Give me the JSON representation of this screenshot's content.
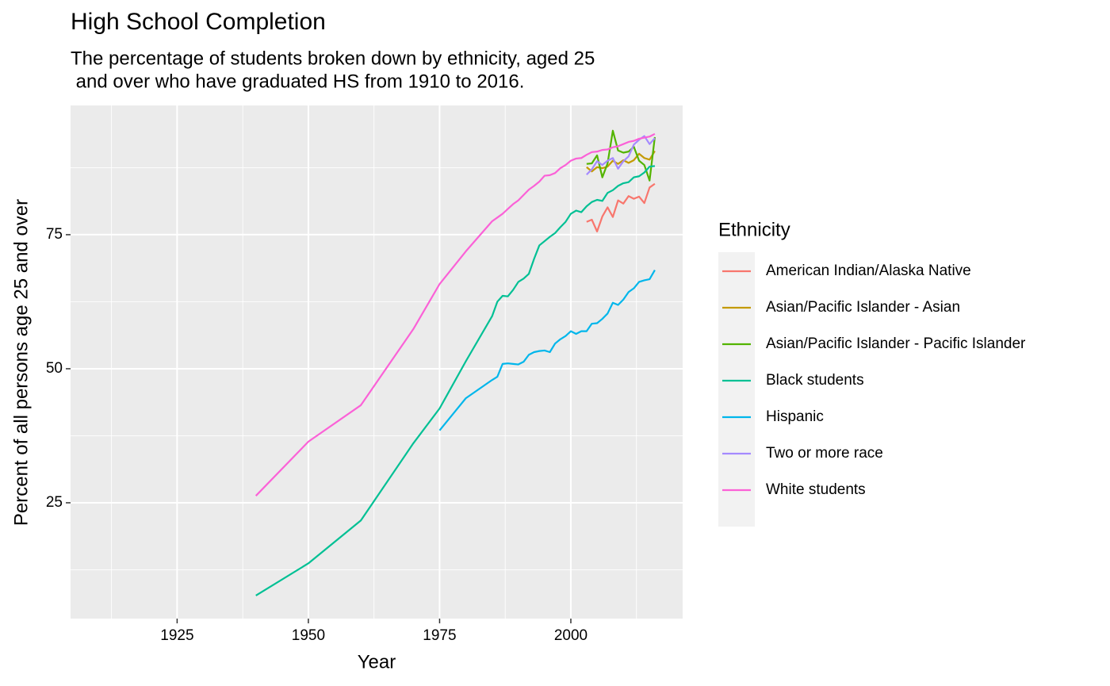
{
  "chart_data": {
    "type": "line",
    "title": "High School Completion",
    "subtitle": [
      "The percentage of students broken down by ethnicity, aged 25",
      " and over who have graduated HS from 1910 to 2016."
    ],
    "x_label": "Year",
    "y_label": "Percent of all persons age 25 and over",
    "legend_title": "Ethnicity",
    "legend_position": "right",
    "grid": true,
    "xlim": [
      1904.7,
      2021.3
    ],
    "ylim": [
      3.4,
      99.1
    ],
    "xticks": [
      1925,
      1950,
      1975,
      2000
    ],
    "yticks": [
      25,
      50,
      75
    ],
    "series": [
      {
        "name": "American Indian/Alaska Native",
        "color": "#F8766D",
        "x": [
          2003,
          2004,
          2005,
          2006,
          2007,
          2008,
          2009,
          2010,
          2011,
          2012,
          2013,
          2014,
          2015,
          2016
        ],
        "values": [
          77.4,
          77.8,
          75.6,
          78.4,
          80.1,
          78.3,
          81.4,
          80.8,
          82.2,
          81.7,
          82.1,
          80.9,
          83.8,
          84.5
        ]
      },
      {
        "name": "Asian/Pacific Islander - Asian",
        "color": "#C49A00",
        "x": [
          2003,
          2004,
          2005,
          2006,
          2007,
          2008,
          2009,
          2010,
          2011,
          2012,
          2013,
          2014,
          2015,
          2016
        ],
        "values": [
          87.6,
          86.8,
          87.6,
          87.4,
          87.7,
          88.8,
          88.2,
          88.9,
          88.4,
          88.9,
          90.1,
          89.3,
          89.0,
          90.6
        ]
      },
      {
        "name": "Asian/Pacific Islander - Pacific Islander",
        "color": "#53B400",
        "x": [
          2003,
          2004,
          2005,
          2006,
          2007,
          2008,
          2009,
          2010,
          2011,
          2012,
          2013,
          2014,
          2015,
          2016
        ],
        "values": [
          88.2,
          88.3,
          89.8,
          85.7,
          88.3,
          94.4,
          90.7,
          90.3,
          90.5,
          91.4,
          88.8,
          88.0,
          85.1,
          93.2
        ]
      },
      {
        "name": "Black students",
        "color": "#00C094",
        "x": [
          1940,
          1950,
          1960,
          1970,
          1975,
          1980,
          1985,
          1986,
          1987,
          1988,
          1989,
          1990,
          1991,
          1992,
          1993,
          1994,
          1995,
          1996,
          1997,
          1998,
          1999,
          2000,
          2001,
          2002,
          2003,
          2004,
          2005,
          2006,
          2007,
          2008,
          2009,
          2010,
          2011,
          2012,
          2013,
          2014,
          2015,
          2016
        ],
        "values": [
          7.7,
          13.7,
          21.7,
          36.1,
          42.6,
          51.4,
          59.8,
          62.5,
          63.6,
          63.5,
          64.7,
          66.2,
          66.8,
          67.7,
          70.5,
          73.0,
          73.8,
          74.6,
          75.3,
          76.4,
          77.4,
          78.9,
          79.5,
          79.2,
          80.3,
          81.1,
          81.5,
          81.3,
          82.8,
          83.3,
          84.1,
          84.6,
          84.8,
          85.7,
          85.9,
          86.6,
          87.7,
          87.8
        ]
      },
      {
        "name": "Hispanic",
        "color": "#00B6EB",
        "x": [
          1975,
          1980,
          1985,
          1986,
          1987,
          1988,
          1989,
          1990,
          1991,
          1992,
          1993,
          1994,
          1995,
          1996,
          1997,
          1998,
          1999,
          2000,
          2001,
          2002,
          2003,
          2004,
          2005,
          2006,
          2007,
          2008,
          2009,
          2010,
          2011,
          2012,
          2013,
          2014,
          2015,
          2016
        ],
        "values": [
          38.5,
          44.5,
          47.9,
          48.5,
          50.9,
          51.0,
          50.9,
          50.8,
          51.3,
          52.6,
          53.1,
          53.3,
          53.4,
          53.1,
          54.7,
          55.5,
          56.1,
          57.0,
          56.5,
          57.0,
          57.0,
          58.4,
          58.5,
          59.3,
          60.3,
          62.3,
          61.9,
          62.9,
          64.3,
          65.0,
          66.2,
          66.5,
          66.7,
          68.4
        ]
      },
      {
        "name": "Two or more race",
        "color": "#A58AFF",
        "x": [
          2003,
          2004,
          2005,
          2006,
          2007,
          2008,
          2009,
          2010,
          2011,
          2012,
          2013,
          2014,
          2015,
          2016
        ],
        "values": [
          86.2,
          87.2,
          88.7,
          88.0,
          88.8,
          89.3,
          87.3,
          88.7,
          89.6,
          91.8,
          92.7,
          93.4,
          91.9,
          93.0
        ]
      },
      {
        "name": "White students",
        "color": "#FB61D7",
        "x": [
          1940,
          1950,
          1960,
          1970,
          1975,
          1980,
          1985,
          1986,
          1987,
          1988,
          1989,
          1990,
          1991,
          1992,
          1993,
          1994,
          1995,
          1996,
          1997,
          1998,
          1999,
          2000,
          2001,
          2002,
          2003,
          2004,
          2005,
          2006,
          2007,
          2008,
          2009,
          2010,
          2011,
          2012,
          2013,
          2014,
          2015,
          2016
        ],
        "values": [
          26.3,
          36.4,
          43.2,
          57.4,
          65.8,
          71.9,
          77.5,
          78.2,
          78.9,
          79.8,
          80.7,
          81.4,
          82.4,
          83.4,
          84.1,
          84.9,
          86.0,
          86.1,
          86.5,
          87.4,
          88.0,
          88.8,
          89.2,
          89.3,
          89.9,
          90.4,
          90.5,
          90.8,
          90.9,
          91.3,
          91.5,
          91.9,
          92.3,
          92.5,
          92.9,
          93.1,
          93.3,
          93.8
        ]
      }
    ]
  }
}
